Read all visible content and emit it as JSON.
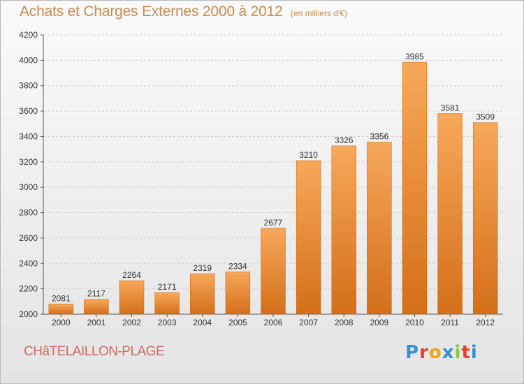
{
  "header": {
    "title": "Achats et Charges Externes 2000 à 2012",
    "subtitle": "(en milliers d'€)"
  },
  "footer": {
    "town": "CHâTELAILLON-PLAGE",
    "logo_text": "Proxiti",
    "logo_colors": [
      "#3a8fd1",
      "#e2432b",
      "#f0a21c",
      "#3a8fd1",
      "#8bc53f",
      "#e2432b",
      "#3a8fd1"
    ]
  },
  "chart_data": {
    "type": "bar",
    "categories": [
      "2000",
      "2001",
      "2002",
      "2003",
      "2004",
      "2005",
      "2006",
      "2007",
      "2008",
      "2009",
      "2010",
      "2011",
      "2012"
    ],
    "values": [
      2081,
      2117,
      2264,
      2171,
      2319,
      2334,
      2677,
      3210,
      3326,
      3356,
      3985,
      3581,
      3509
    ],
    "yticks": [
      2000,
      2200,
      2400,
      2600,
      2800,
      3000,
      3200,
      3400,
      3600,
      3800,
      4000,
      4200
    ],
    "ylim": [
      2000,
      4200
    ],
    "grid": true,
    "bar_color_top": "#f7a85a",
    "bar_color_bottom": "#d46f19",
    "title": "Achats et Charges Externes 2000 à 2012",
    "xlabel": "",
    "ylabel": ""
  }
}
